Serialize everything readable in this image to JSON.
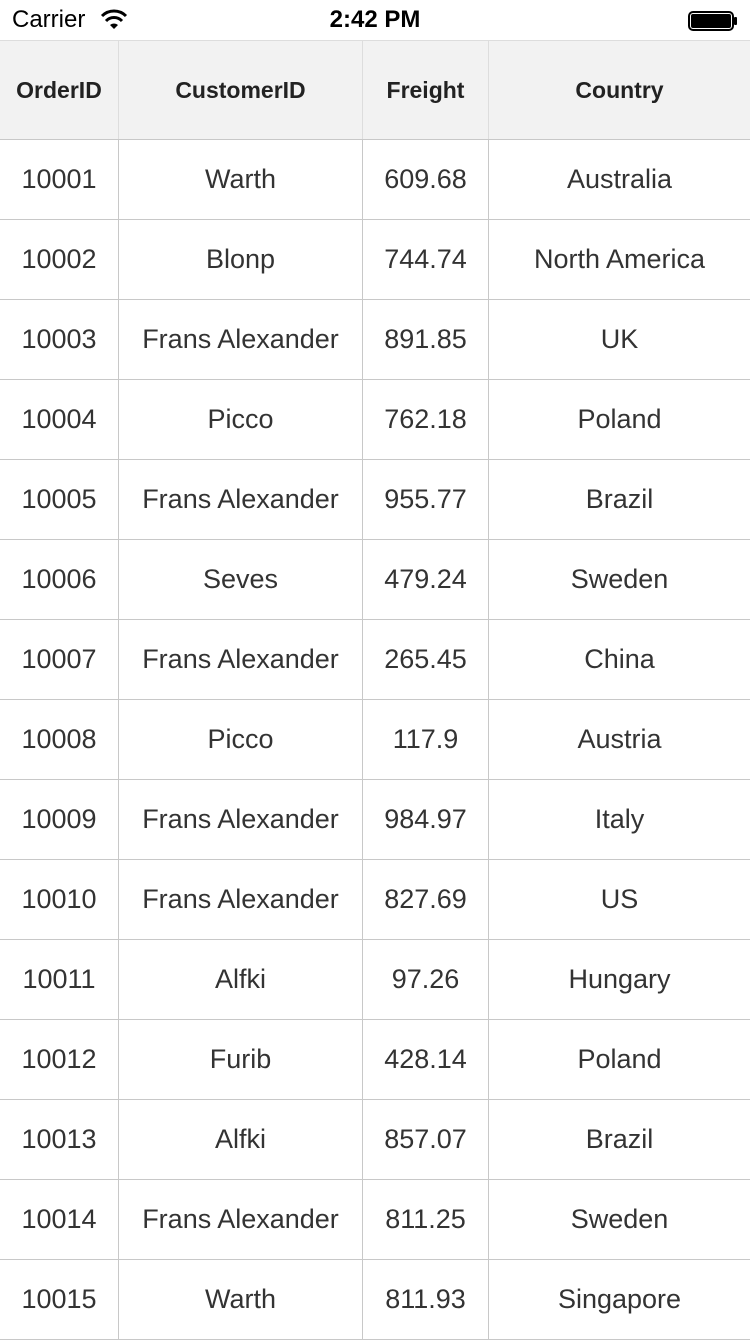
{
  "status_bar": {
    "carrier": "Carrier",
    "time": "2:42 PM",
    "icons": [
      "wifi-icon",
      "battery-icon"
    ]
  },
  "grid": {
    "columns": [
      "OrderID",
      "CustomerID",
      "Freight",
      "Country"
    ],
    "rows": [
      [
        "10001",
        "Warth",
        "609.68",
        "Australia"
      ],
      [
        "10002",
        "Blonp",
        "744.74",
        "North America"
      ],
      [
        "10003",
        "Frans Alexander",
        "891.85",
        "UK"
      ],
      [
        "10004",
        "Picco",
        "762.18",
        "Poland"
      ],
      [
        "10005",
        "Frans Alexander",
        "955.77",
        "Brazil"
      ],
      [
        "10006",
        "Seves",
        "479.24",
        "Sweden"
      ],
      [
        "10007",
        "Frans Alexander",
        "265.45",
        "China"
      ],
      [
        "10008",
        "Picco",
        "117.9",
        "Austria"
      ],
      [
        "10009",
        "Frans Alexander",
        "984.97",
        "Italy"
      ],
      [
        "10010",
        "Frans Alexander",
        "827.69",
        "US"
      ],
      [
        "10011",
        "Alfki",
        "97.26",
        "Hungary"
      ],
      [
        "10012",
        "Furib",
        "428.14",
        "Poland"
      ],
      [
        "10013",
        "Alfki",
        "857.07",
        "Brazil"
      ],
      [
        "10014",
        "Frans Alexander",
        "811.25",
        "Sweden"
      ],
      [
        "10015",
        "Warth",
        "811.93",
        "Singapore"
      ]
    ]
  }
}
